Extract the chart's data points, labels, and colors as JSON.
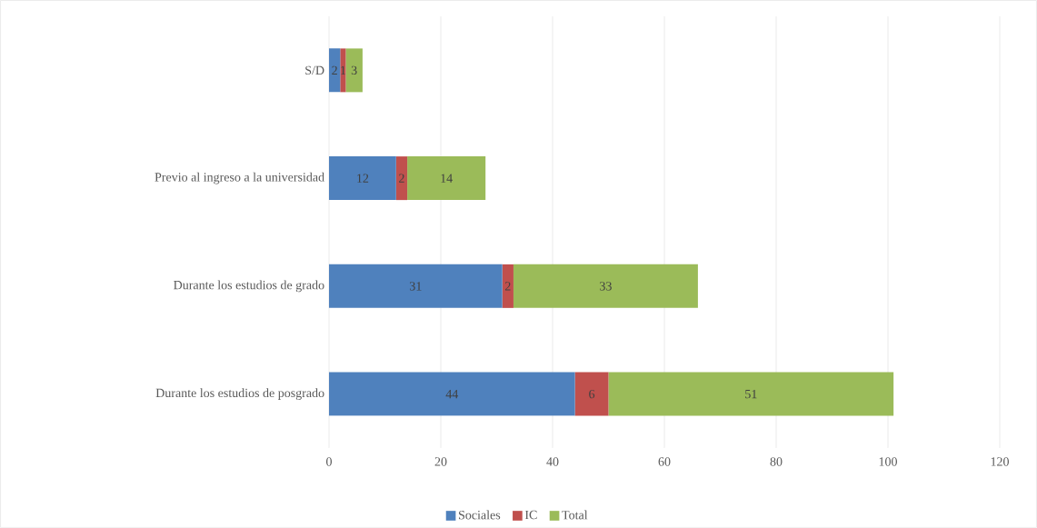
{
  "chart_data": {
    "type": "bar",
    "orientation": "horizontal",
    "stacked": true,
    "categories": [
      "S/D",
      "Previo al ingreso a la universidad",
      "Durante los estudios de grado",
      "Durante los estudios de posgrado"
    ],
    "series": [
      {
        "name": "Sociales",
        "color": "#4f81bd",
        "values": [
          2,
          12,
          31,
          44
        ]
      },
      {
        "name": "IC",
        "color": "#c0504d",
        "values": [
          1,
          2,
          2,
          6
        ]
      },
      {
        "name": "Total",
        "color": "#9bbb59",
        "values": [
          3,
          14,
          33,
          51
        ]
      }
    ],
    "xlim": [
      0,
      120
    ],
    "xticks": [
      0,
      20,
      40,
      60,
      80,
      100,
      120
    ],
    "grid": "x",
    "legend": "bottom",
    "data_labels": true
  }
}
